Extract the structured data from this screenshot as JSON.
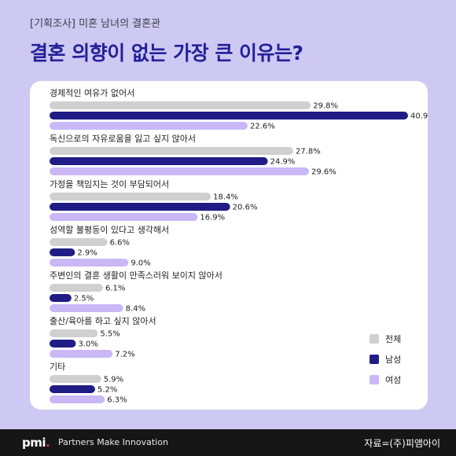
{
  "header": {
    "subtitle": "[기획조사] 미혼 남녀의 결혼관",
    "title": "결혼 의향이 없는 가장 큰 이유는?"
  },
  "footer": {
    "logo": "pmi",
    "tagline": "Partners Make Innovation",
    "source": "자료=(주)피앰아이"
  },
  "chart_data": {
    "type": "bar",
    "orientation": "horizontal",
    "categories": [
      "경제적인 여유가 없어서",
      "독신으로의 자유로움을 잃고 싶지 않아서",
      "가정을 책임지는 것이 부담되어서",
      "성역할 불평등이 있다고 생각해서",
      "주변인의 결혼 생활이 만족스러워 보이지 않아서",
      "출산/육아를 하고 싶지 않아서",
      "기타"
    ],
    "series": [
      {
        "name": "전체",
        "color": "#d0d0d0",
        "values": [
          29.8,
          27.8,
          18.4,
          6.6,
          6.1,
          5.5,
          5.9
        ]
      },
      {
        "name": "남성",
        "color": "#201c86",
        "values": [
          40.9,
          24.9,
          20.6,
          2.9,
          2.5,
          3.0,
          5.2
        ]
      },
      {
        "name": "여성",
        "color": "#c9b8f5",
        "values": [
          22.6,
          29.6,
          16.9,
          9.0,
          8.4,
          7.2,
          6.3
        ]
      }
    ],
    "value_suffix": "%",
    "xlim": [
      0,
      42
    ],
    "legend_position": "bottom-right",
    "grid": false
  }
}
